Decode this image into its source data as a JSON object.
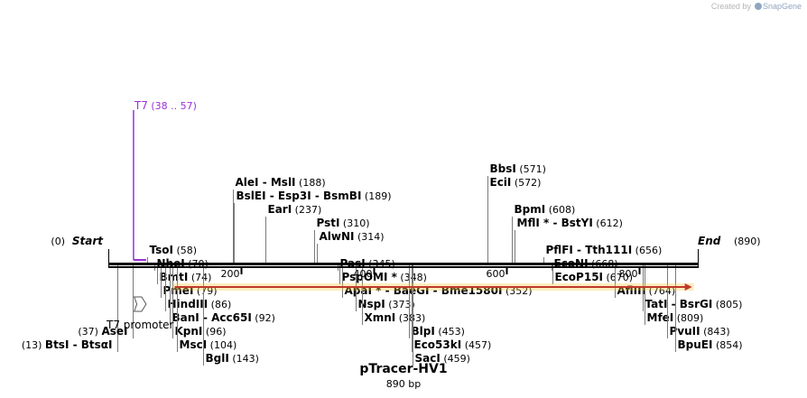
{
  "credit": {
    "prefix": "Created by",
    "brand": "SnapGene"
  },
  "map": {
    "title": "pTracer-HV1",
    "length_label": "890 bp",
    "length_bp": 890,
    "ticks": [
      200,
      400,
      600,
      800
    ],
    "start_label": "Start",
    "start_pos": "(0)",
    "end_label": "End",
    "end_pos": "(890)",
    "colors": {
      "primer": "#9b30d6",
      "orf_fill": "#f5c842",
      "orf_stroke": "#c0392b",
      "backbone": "#000000"
    }
  },
  "enzymes": [
    {
      "bp": 13,
      "names": [
        "BtsI",
        "BtsαI"
      ],
      "pos": "(13)",
      "row": 11,
      "side": "left"
    },
    {
      "bp": 37,
      "names": [
        "AseI"
      ],
      "pos": "(37)",
      "row": 10,
      "side": "left"
    },
    {
      "bp": 58,
      "names": [
        "TsoI"
      ],
      "pos": "(58)",
      "row": 4
    },
    {
      "bp": 70,
      "names": [
        "NheI"
      ],
      "pos": "(70)",
      "row": 5
    },
    {
      "bp": 74,
      "names": [
        "BmtI"
      ],
      "pos": "(74)",
      "row": 6
    },
    {
      "bp": 79,
      "names": [
        "PmeI"
      ],
      "pos": "(79)",
      "row": 7
    },
    {
      "bp": 86,
      "names": [
        "HindIII"
      ],
      "pos": "(86)",
      "row": 8
    },
    {
      "bp": 92,
      "names": [
        "BanI",
        "Acc65I"
      ],
      "pos": "(92)",
      "row": 9
    },
    {
      "bp": 96,
      "names": [
        "KpnI"
      ],
      "pos": "(96)",
      "row": 10
    },
    {
      "bp": 104,
      "names": [
        "MscI"
      ],
      "pos": "(104)",
      "row": 11
    },
    {
      "bp": 143,
      "names": [
        "BglI"
      ],
      "pos": "(143)",
      "row": 12
    },
    {
      "bp": 188,
      "names": [
        "AleI",
        "MslI"
      ],
      "pos": "(188)",
      "row": -1
    },
    {
      "bp": 189,
      "names": [
        "BslEI",
        "Esp3I",
        "BsmBI"
      ],
      "pos": "(189)",
      "row": 0
    },
    {
      "bp": 237,
      "names": [
        "EarI"
      ],
      "pos": "(237)",
      "row": 1
    },
    {
      "bp": 310,
      "names": [
        "PstI"
      ],
      "pos": "(310)",
      "row": 2
    },
    {
      "bp": 314,
      "names": [
        "AlwNI"
      ],
      "pos": "(314)",
      "row": 3
    },
    {
      "bp": 345,
      "names": [
        "PasI"
      ],
      "pos": "(345)",
      "row": 5
    },
    {
      "bp": 348,
      "names": [
        "PspOMI *"
      ],
      "pos": "(348)",
      "row": 6
    },
    {
      "bp": 352,
      "names": [
        "ApaI *",
        "BaeGI",
        "Bme1580I"
      ],
      "pos": "(352)",
      "row": 7
    },
    {
      "bp": 373,
      "names": [
        "NspI"
      ],
      "pos": "(373)",
      "row": 8
    },
    {
      "bp": 383,
      "names": [
        "XmnI"
      ],
      "pos": "(383)",
      "row": 9
    },
    {
      "bp": 453,
      "names": [
        "BlpI"
      ],
      "pos": "(453)",
      "row": 10
    },
    {
      "bp": 457,
      "names": [
        "Eco53kI"
      ],
      "pos": "(457)",
      "row": 11
    },
    {
      "bp": 459,
      "names": [
        "SacI"
      ],
      "pos": "(459)",
      "row": 12
    },
    {
      "bp": 571,
      "names": [
        "BbsI"
      ],
      "pos": "(571)",
      "row": -2
    },
    {
      "bp": 572,
      "names": [
        "EciI"
      ],
      "pos": "(572)",
      "row": -1
    },
    {
      "bp": 608,
      "names": [
        "BpmI"
      ],
      "pos": "(608)",
      "row": 1
    },
    {
      "bp": 612,
      "names": [
        "MflI *",
        "BstYI"
      ],
      "pos": "(612)",
      "row": 2
    },
    {
      "bp": 656,
      "names": [
        "PflFI",
        "Tth111I"
      ],
      "pos": "(656)",
      "row": 4
    },
    {
      "bp": 668,
      "names": [
        "EcoNI"
      ],
      "pos": "(668)",
      "row": 5
    },
    {
      "bp": 670,
      "names": [
        "EcoP15I"
      ],
      "pos": "(670)",
      "row": 6
    },
    {
      "bp": 764,
      "names": [
        "AflIII"
      ],
      "pos": "(764)",
      "row": 7
    },
    {
      "bp": 805,
      "names": [
        "TatI",
        "BsrGI"
      ],
      "pos": "(805)",
      "row": 8
    },
    {
      "bp": 809,
      "names": [
        "MfeI"
      ],
      "pos": "(809)",
      "row": 9
    },
    {
      "bp": 843,
      "names": [
        "PvuII"
      ],
      "pos": "(843)",
      "row": 10
    },
    {
      "bp": 854,
      "names": [
        "BpuEI"
      ],
      "pos": "(854)",
      "row": 11
    }
  ],
  "primers": [
    {
      "name": "T7",
      "range": "(38 .. 57)",
      "start_bp": 38,
      "end_bp": 57
    }
  ],
  "features": [
    {
      "type": "orf",
      "start_bp": 100,
      "end_bp": 880
    },
    {
      "type": "promoter",
      "name": "T7 promoter",
      "start_bp": 39,
      "end_bp": 57
    }
  ]
}
